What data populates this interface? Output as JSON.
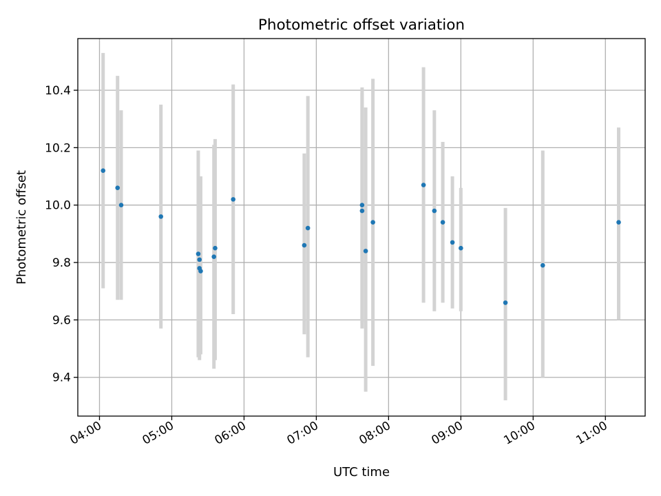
{
  "chart_data": {
    "type": "scatter",
    "title": "Photometric offset variation",
    "xlabel": "UTC time",
    "ylabel": "Photometric offset",
    "x_ticks": [
      "04:00",
      "05:00",
      "06:00",
      "07:00",
      "08:00",
      "09:00",
      "10:00",
      "11:00"
    ],
    "y_ticks": [
      "9.4",
      "9.6",
      "9.8",
      "10.0",
      "10.2",
      "10.4"
    ],
    "xlim": [
      "03:42",
      "11:33"
    ],
    "ylim": [
      9.265,
      10.58
    ],
    "grid": true,
    "colors": {
      "point": "#1f77b4",
      "errorbar": "#d3d3d3"
    },
    "series": [
      {
        "points": [
          {
            "x": "04:03",
            "y": 10.12,
            "err_low": 9.71,
            "err_high": 10.53
          },
          {
            "x": "04:15",
            "y": 10.06,
            "err_low": 9.67,
            "err_high": 10.45
          },
          {
            "x": "04:18",
            "y": 10.0,
            "err_low": 9.67,
            "err_high": 10.33
          },
          {
            "x": "04:51",
            "y": 9.96,
            "err_low": 9.57,
            "err_high": 10.35
          },
          {
            "x": "05:22",
            "y": 9.83,
            "err_low": 9.47,
            "err_high": 10.19
          },
          {
            "x": "05:23",
            "y": 9.78,
            "err_low": 9.46,
            "err_high": 10.06
          },
          {
            "x": "05:23",
            "y": 9.81,
            "err_low": 9.47,
            "err_high": 10.07
          },
          {
            "x": "05:24",
            "y": 9.77,
            "err_low": 9.48,
            "err_high": 10.1
          },
          {
            "x": "05:35",
            "y": 9.82,
            "err_low": 9.43,
            "err_high": 10.21
          },
          {
            "x": "05:36",
            "y": 9.85,
            "err_low": 9.46,
            "err_high": 10.23
          },
          {
            "x": "05:51",
            "y": 10.02,
            "err_low": 9.62,
            "err_high": 10.42
          },
          {
            "x": "06:50",
            "y": 9.86,
            "err_low": 9.55,
            "err_high": 10.18
          },
          {
            "x": "06:53",
            "y": 9.92,
            "err_low": 9.47,
            "err_high": 10.38
          },
          {
            "x": "07:38",
            "y": 9.98,
            "err_low": 9.57,
            "err_high": 10.39
          },
          {
            "x": "07:38",
            "y": 10.0,
            "err_low": 9.59,
            "err_high": 10.41
          },
          {
            "x": "07:41",
            "y": 9.84,
            "err_low": 9.35,
            "err_high": 10.34
          },
          {
            "x": "07:47",
            "y": 9.94,
            "err_low": 9.44,
            "err_high": 10.44
          },
          {
            "x": "08:29",
            "y": 10.07,
            "err_low": 9.66,
            "err_high": 10.48
          },
          {
            "x": "08:38",
            "y": 9.98,
            "err_low": 9.63,
            "err_high": 10.33
          },
          {
            "x": "08:45",
            "y": 9.94,
            "err_low": 9.66,
            "err_high": 10.22
          },
          {
            "x": "08:53",
            "y": 9.87,
            "err_low": 9.64,
            "err_high": 10.1
          },
          {
            "x": "09:00",
            "y": 9.85,
            "err_low": 9.63,
            "err_high": 10.06
          },
          {
            "x": "09:37",
            "y": 9.66,
            "err_low": 9.32,
            "err_high": 9.99
          },
          {
            "x": "10:08",
            "y": 9.79,
            "err_low": 9.4,
            "err_high": 10.19
          },
          {
            "x": "11:11",
            "y": 9.94,
            "err_low": 9.6,
            "err_high": 10.27
          }
        ]
      }
    ]
  }
}
